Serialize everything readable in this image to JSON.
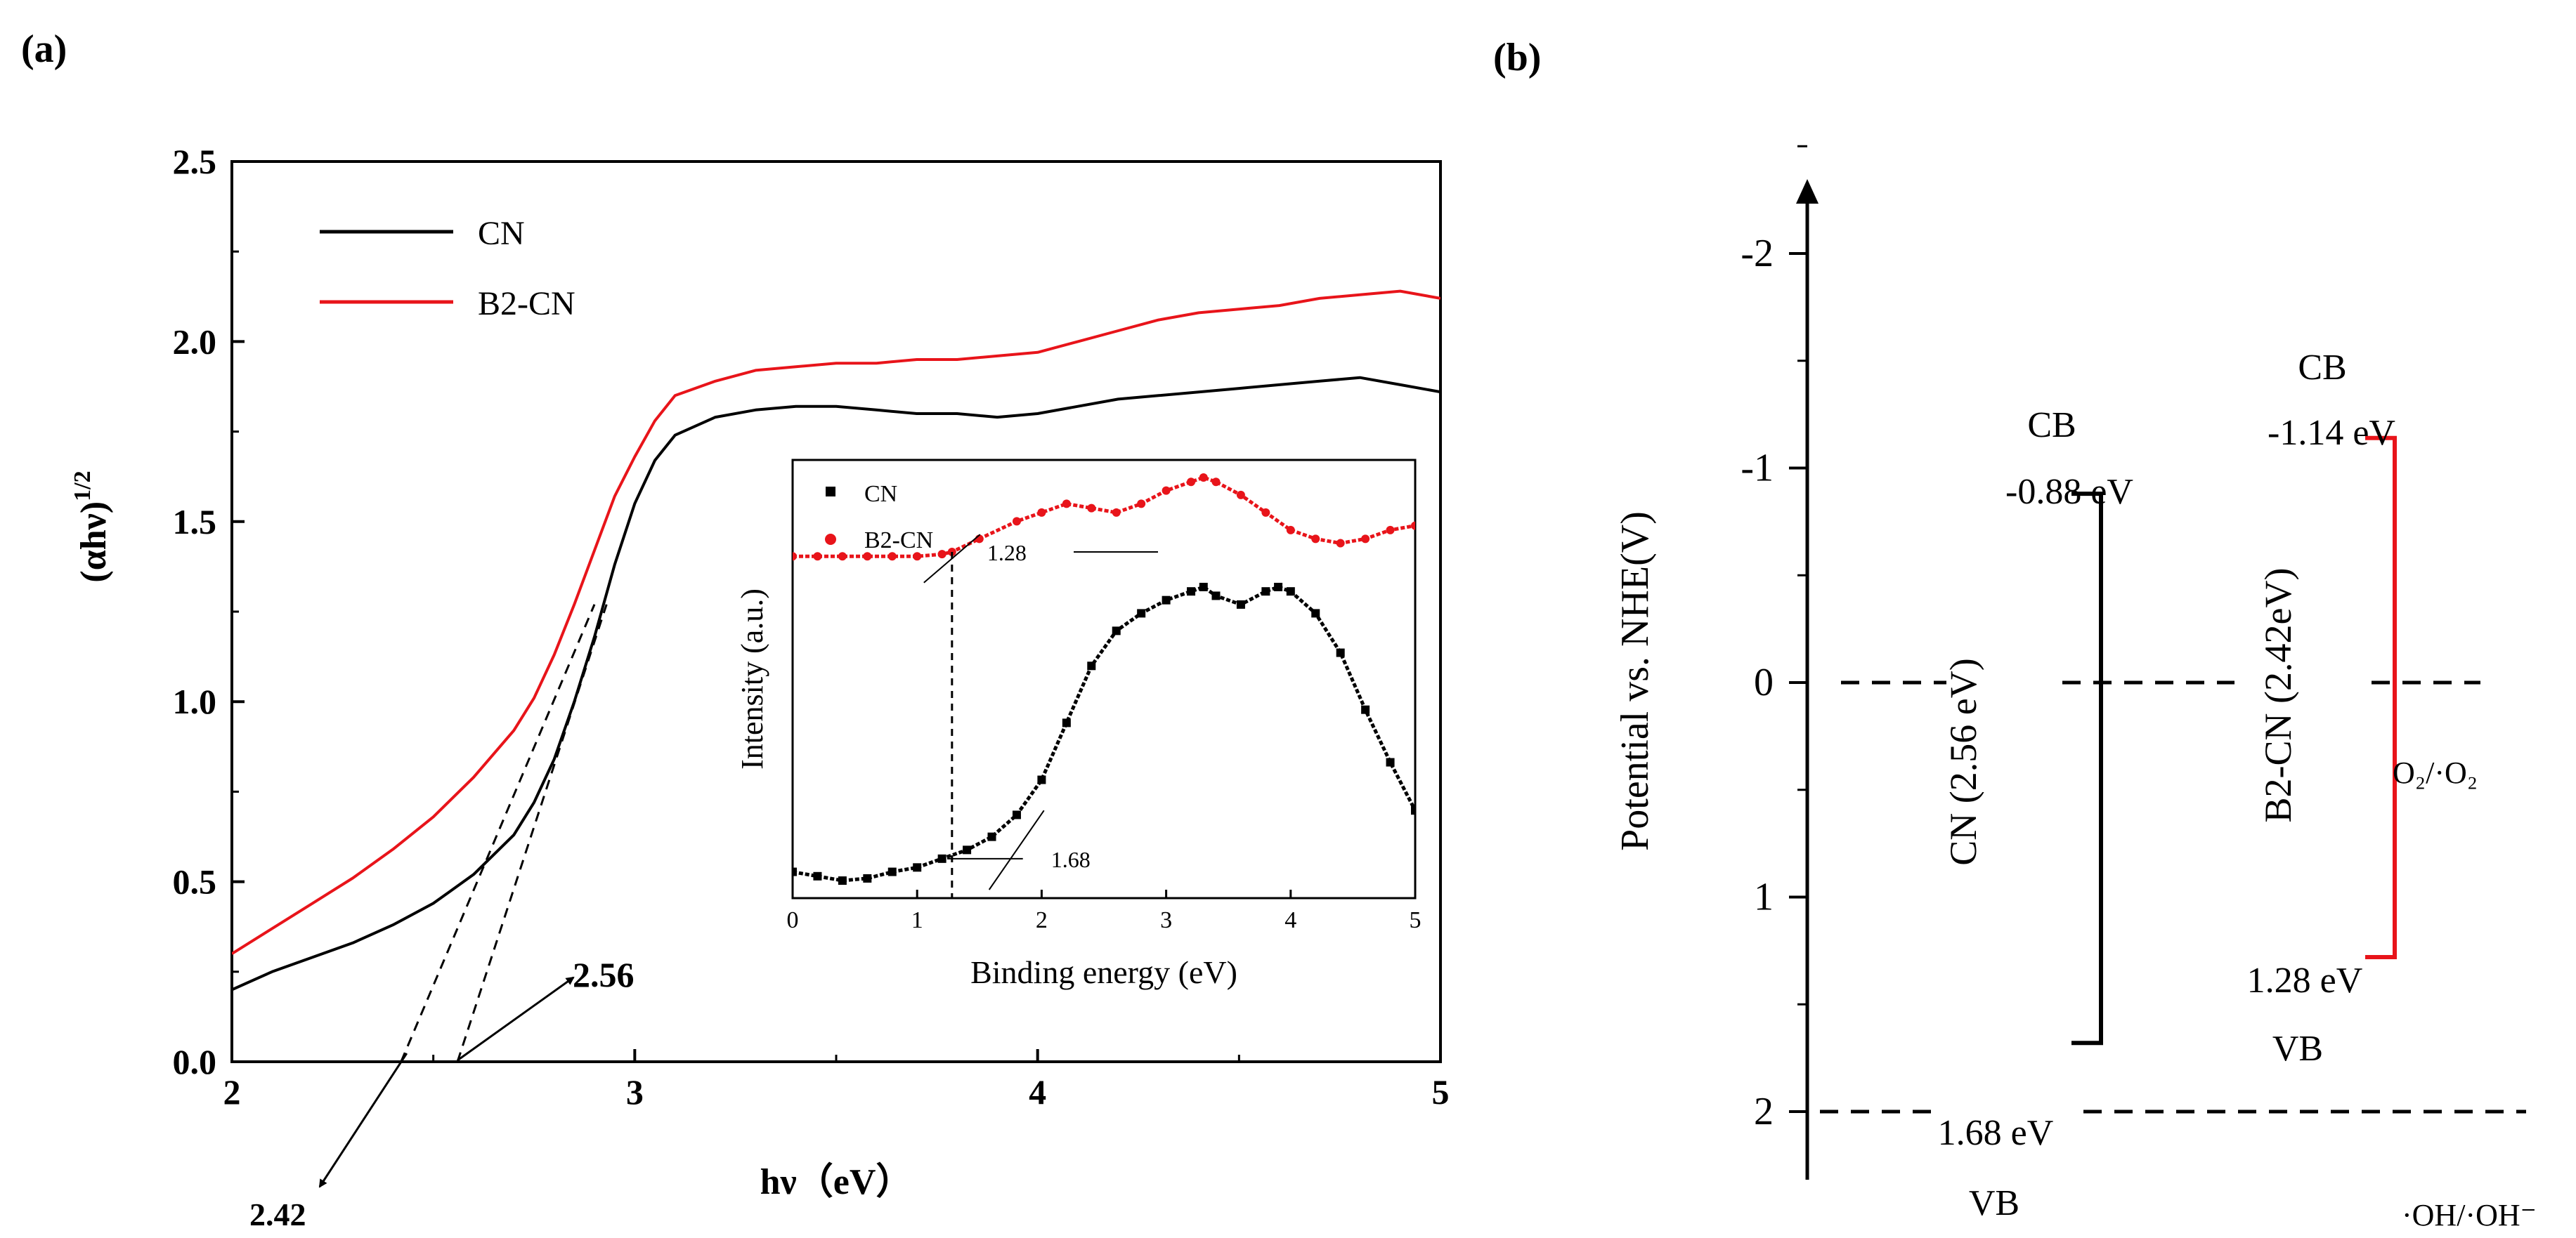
{
  "chart_data": [
    {
      "panel": "(a)",
      "type": "line",
      "xlabel": "hν（eV）",
      "ylabel": "(αhν)",
      "ylabel_sup": "1/2",
      "xlim": [
        2,
        5
      ],
      "ylim": [
        0,
        2.5
      ],
      "xticks": [
        2,
        3,
        4,
        5
      ],
      "yticks": [
        "0.0",
        "0.5",
        "1.0",
        "1.5",
        "2.0",
        "2.5"
      ],
      "legend": [
        "CN",
        "B2-CN"
      ],
      "series": [
        {
          "name": "CN",
          "color": "#000000",
          "x": [
            2.0,
            2.1,
            2.2,
            2.3,
            2.4,
            2.5,
            2.6,
            2.7,
            2.75,
            2.8,
            2.85,
            2.9,
            2.95,
            3.0,
            3.05,
            3.1,
            3.2,
            3.3,
            3.4,
            3.5,
            3.6,
            3.7,
            3.8,
            3.9,
            4.0,
            4.1,
            4.2,
            4.3,
            4.4,
            4.5,
            4.6,
            4.7,
            4.8,
            4.9,
            5.0
          ],
          "y": [
            0.2,
            0.25,
            0.29,
            0.33,
            0.38,
            0.44,
            0.52,
            0.63,
            0.72,
            0.84,
            1.0,
            1.18,
            1.38,
            1.55,
            1.67,
            1.74,
            1.79,
            1.81,
            1.82,
            1.82,
            1.81,
            1.8,
            1.8,
            1.79,
            1.8,
            1.82,
            1.84,
            1.85,
            1.86,
            1.87,
            1.88,
            1.89,
            1.9,
            1.88,
            1.86
          ]
        },
        {
          "name": "B2-CN",
          "color": "#e8141a",
          "x": [
            2.0,
            2.1,
            2.2,
            2.3,
            2.4,
            2.5,
            2.6,
            2.7,
            2.75,
            2.8,
            2.85,
            2.9,
            2.95,
            3.0,
            3.05,
            3.1,
            3.2,
            3.3,
            3.4,
            3.5,
            3.6,
            3.7,
            3.8,
            3.9,
            4.0,
            4.1,
            4.2,
            4.3,
            4.4,
            4.5,
            4.6,
            4.7,
            4.8,
            4.9,
            5.0
          ],
          "y": [
            0.3,
            0.37,
            0.44,
            0.51,
            0.59,
            0.68,
            0.79,
            0.92,
            1.01,
            1.13,
            1.27,
            1.42,
            1.57,
            1.68,
            1.78,
            1.85,
            1.89,
            1.92,
            1.93,
            1.94,
            1.94,
            1.95,
            1.95,
            1.96,
            1.97,
            2.0,
            2.03,
            2.06,
            2.08,
            2.09,
            2.1,
            2.12,
            2.13,
            2.14,
            2.12
          ]
        }
      ],
      "tangents": [
        {
          "label": "2.42",
          "x0": 2.42
        },
        {
          "label": "2.56",
          "x0": 2.56
        }
      ],
      "inset": {
        "type": "scatter",
        "xlabel": "Binding energy (eV)",
        "ylabel": "Intensity (a.u.)",
        "xlim": [
          0,
          5
        ],
        "xticks": [
          0,
          1,
          2,
          3,
          4,
          5
        ],
        "legend": [
          "CN",
          "B2-CN"
        ],
        "annotations": [
          "1.28",
          "1.68"
        ],
        "series": [
          {
            "name": "CN",
            "color": "#000000",
            "x": [
              0.0,
              0.2,
              0.4,
              0.6,
              0.8,
              1.0,
              1.2,
              1.4,
              1.6,
              1.8,
              2.0,
              2.2,
              2.4,
              2.6,
              2.8,
              3.0,
              3.2,
              3.3,
              3.4,
              3.6,
              3.8,
              3.9,
              4.0,
              4.2,
              4.4,
              4.6,
              4.8,
              5.0
            ],
            "y": [
              0.06,
              0.05,
              0.04,
              0.045,
              0.06,
              0.07,
              0.09,
              0.11,
              0.14,
              0.19,
              0.27,
              0.4,
              0.53,
              0.61,
              0.65,
              0.68,
              0.7,
              0.71,
              0.69,
              0.67,
              0.7,
              0.71,
              0.7,
              0.65,
              0.56,
              0.43,
              0.31,
              0.2
            ]
          },
          {
            "name": "B2-CN",
            "color": "#e8141a",
            "x": [
              0.0,
              0.2,
              0.4,
              0.6,
              0.8,
              1.0,
              1.2,
              1.28,
              1.5,
              1.8,
              2.0,
              2.2,
              2.4,
              2.6,
              2.8,
              3.0,
              3.2,
              3.3,
              3.4,
              3.6,
              3.8,
              4.0,
              4.2,
              4.4,
              4.6,
              4.8,
              5.0
            ],
            "y": [
              0.78,
              0.78,
              0.78,
              0.78,
              0.78,
              0.78,
              0.785,
              0.79,
              0.82,
              0.86,
              0.88,
              0.9,
              0.89,
              0.88,
              0.9,
              0.93,
              0.95,
              0.96,
              0.95,
              0.92,
              0.88,
              0.84,
              0.82,
              0.81,
              0.82,
              0.84,
              0.85
            ]
          }
        ]
      }
    },
    {
      "panel": "(b)",
      "type": "band-diagram",
      "ylabel": "Potential vs. NHE(V)",
      "ylim": [
        -2.5,
        2.2
      ],
      "yticks": [
        "-2",
        "-1",
        "0",
        "1",
        "2"
      ],
      "reference_levels": [
        {
          "potential": 0,
          "label": "O₂/·O₂"
        },
        {
          "potential": 2,
          "label": "·OH/·OH⁻"
        }
      ],
      "bands": [
        {
          "name": "CN (2.56 eV)",
          "cb": -0.88,
          "vb": 1.68,
          "color": "#000000",
          "cb_title": "CB",
          "cb_value": "-0.88 eV",
          "vb_title": "VB",
          "vb_value": "1.68 eV"
        },
        {
          "name": "B2-CN (2.42eV)",
          "cb": -1.14,
          "vb": 1.28,
          "color": "#e8141a",
          "cb_title": "CB",
          "cb_value": "-1.14 eV",
          "vb_title": "VB",
          "vb_value": "1.28 eV"
        }
      ]
    }
  ]
}
